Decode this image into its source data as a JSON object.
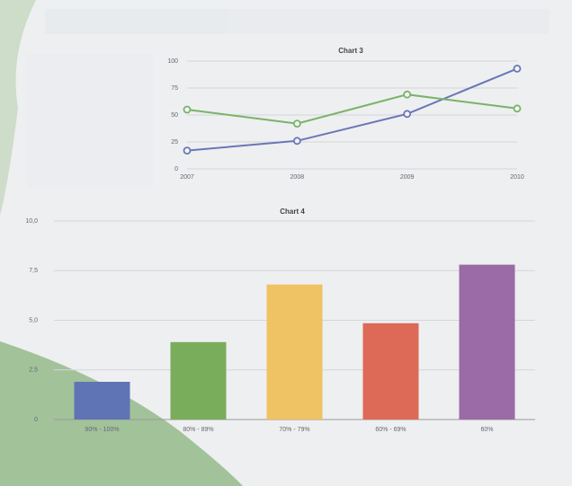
{
  "chart_data": [
    {
      "type": "line",
      "title": "Chart 3",
      "categories": [
        "2007",
        "2008",
        "2009",
        "2010"
      ],
      "series": [
        {
          "color": "#6a76b8",
          "values": [
            17,
            26,
            51,
            93
          ]
        },
        {
          "color": "#79b36a",
          "values": [
            55,
            42,
            69,
            56
          ]
        }
      ],
      "ylim": [
        0,
        100
      ],
      "yticks": [
        0,
        25,
        50,
        75,
        100
      ],
      "grid": true
    },
    {
      "type": "bar",
      "title": "Chart 4",
      "categories": [
        "90% - 100%",
        "80% - 89%",
        "70% - 79%",
        "60% - 69%",
        "60%"
      ],
      "values": [
        1.9,
        3.9,
        6.8,
        4.85,
        7.8
      ],
      "colors": [
        "#5f74b4",
        "#79ad5c",
        "#efc264",
        "#dc6a57",
        "#9a6ba6"
      ],
      "ylim": [
        0,
        10
      ],
      "yticks": [
        0,
        {
          "value": 2.5,
          "label": "2,5"
        },
        {
          "value": 5,
          "label": "5,0"
        },
        {
          "value": 7.5,
          "label": "7,5"
        },
        {
          "value": 10,
          "label": "10,0"
        }
      ],
      "grid": true
    }
  ]
}
